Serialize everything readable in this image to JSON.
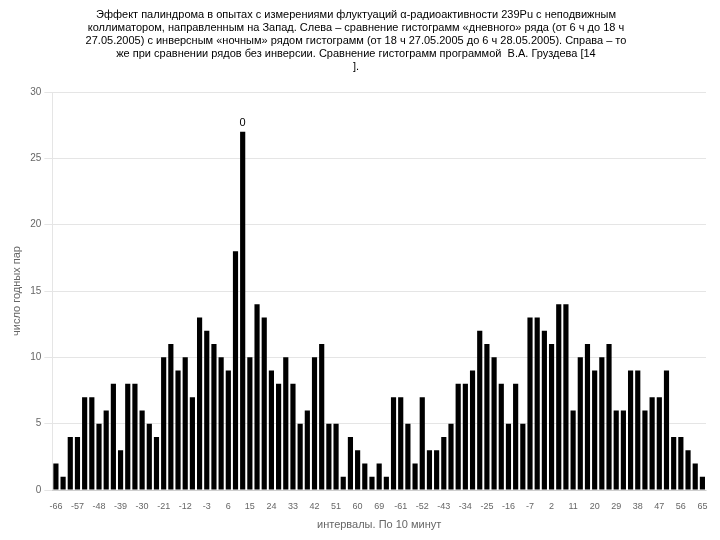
{
  "chart_data": {
    "type": "bar",
    "title": "Эффект палиндрома в опытах с измерениями флуктуаций α-радиоактивности 239Pu с неподвижным\nколлиматором, направленным на Запад. Слева – сравнение гистограмм «дневного» ряда (от 6 ч до 18 ч\n27.05.2005) с инверсным «ночным» рядом гистограмм (от 18 ч 27.05.2005 до 6 ч 28.05.2005). Справа – то\nже при сравнении рядов без инверсии. Сравнение гистограмм программой  В.А. Груздева [14\n].",
    "x_label": "интервалы. По 10 минут",
    "y_label": "число годных пар",
    "categories": [
      "-66",
      null,
      null,
      "-57",
      null,
      null,
      "-48",
      null,
      null,
      "-39",
      null,
      null,
      "-30",
      null,
      null,
      "-21",
      null,
      null,
      "-12",
      null,
      null,
      "-3",
      null,
      null,
      "6",
      null,
      null,
      "15",
      null,
      null,
      "24",
      null,
      null,
      "33",
      null,
      null,
      "42",
      null,
      null,
      "51",
      null,
      null,
      "60",
      null,
      null,
      "69",
      null,
      null,
      "-61",
      null,
      null,
      "-52",
      null,
      null,
      "-43",
      null,
      null,
      "-34",
      null,
      null,
      "-25",
      null,
      null,
      "-16",
      null,
      null,
      "-7",
      null,
      null,
      "2",
      null,
      null,
      "11",
      null,
      null,
      "20",
      null,
      null,
      "29",
      null,
      null,
      "38",
      null,
      null,
      "47",
      null,
      null,
      "56",
      null,
      null,
      "65"
    ],
    "values": [
      2,
      1,
      4,
      4,
      7,
      7,
      5,
      6,
      8,
      3,
      8,
      8,
      6,
      5,
      4,
      10,
      11,
      9,
      10,
      7,
      13,
      12,
      11,
      10,
      9,
      18,
      27,
      10,
      14,
      13,
      9,
      8,
      10,
      8,
      5,
      6,
      10,
      11,
      5,
      5,
      1,
      4,
      3,
      2,
      1,
      2,
      1,
      7,
      7,
      5,
      2,
      7,
      3,
      3,
      4,
      5,
      8,
      8,
      9,
      12,
      11,
      10,
      8,
      5,
      8,
      5,
      13,
      13,
      12,
      11,
      14,
      14,
      6,
      10,
      11,
      9,
      10,
      11,
      6,
      6,
      9,
      9,
      6,
      7,
      7,
      9,
      4,
      4,
      3,
      2,
      1
    ],
    "color": "#000000",
    "ylim": [
      0,
      30
    ],
    "yticks": [
      0,
      5,
      10,
      15,
      20,
      25,
      30
    ],
    "grid": true,
    "annotations": [
      {
        "text": "0",
        "index": 26
      }
    ]
  }
}
